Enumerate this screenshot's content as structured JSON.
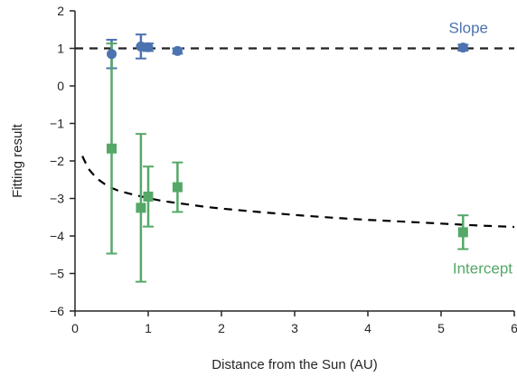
{
  "chart_data": {
    "type": "scatter",
    "xlabel": "Distance from the Sun (AU)",
    "ylabel": "Fitting result",
    "xlim": [
      0,
      6
    ],
    "ylim": [
      -6,
      2
    ],
    "xticks": [
      "0",
      "1",
      "2",
      "3",
      "4",
      "5",
      "6"
    ],
    "yticks": [
      "2",
      "1",
      "0",
      "-1",
      "-2",
      "-3",
      "-4",
      "-5",
      "-6"
    ],
    "grid": false,
    "colors": {
      "slope": "#4c72b0",
      "intercept": "#55a868",
      "reference": "#222222",
      "model": "#000000"
    },
    "annotations": [
      {
        "text": "Slope",
        "color": "#4c72b0"
      },
      {
        "text": "Intercept",
        "color": "#55a868"
      }
    ],
    "series": [
      {
        "marker": "circle",
        "points": [
          {
            "x": 0.5,
            "y": 0.85,
            "err": 0.38
          },
          {
            "x": 0.9,
            "y": 1.05,
            "err": 0.32
          },
          {
            "x": 1.0,
            "y": 1.03,
            "err": 0.1
          },
          {
            "x": 1.4,
            "y": 0.93,
            "err": 0.07
          },
          {
            "x": 5.3,
            "y": 1.02,
            "err": 0.08
          }
        ]
      },
      {
        "marker": "square",
        "points": [
          {
            "x": 0.5,
            "y": -1.67,
            "err": 2.8
          },
          {
            "x": 0.9,
            "y": -3.25,
            "err": 1.97
          },
          {
            "x": 1.0,
            "y": -2.95,
            "err": 0.8
          },
          {
            "x": 1.4,
            "y": -2.7,
            "err": 0.66
          },
          {
            "x": 5.3,
            "y": -3.9,
            "err": 0.45
          }
        ]
      }
    ],
    "reference_line": {
      "y": 1,
      "style": "dashed"
    },
    "model_curve": {
      "style": "dashed",
      "x": [
        0.1,
        0.15,
        0.2,
        0.3,
        0.4,
        0.5,
        0.6,
        0.8,
        1.0,
        1.2,
        1.5,
        1.8,
        2.0,
        2.5,
        3.0,
        3.5,
        4.0,
        4.5,
        5.0,
        5.5,
        6.0
      ],
      "y": [
        -1.87,
        -2.08,
        -2.25,
        -2.47,
        -2.61,
        -2.72,
        -2.8,
        -2.9,
        -2.99,
        -3.07,
        -3.15,
        -3.23,
        -3.27,
        -3.36,
        -3.44,
        -3.51,
        -3.57,
        -3.62,
        -3.67,
        -3.72,
        -3.76
      ]
    }
  }
}
